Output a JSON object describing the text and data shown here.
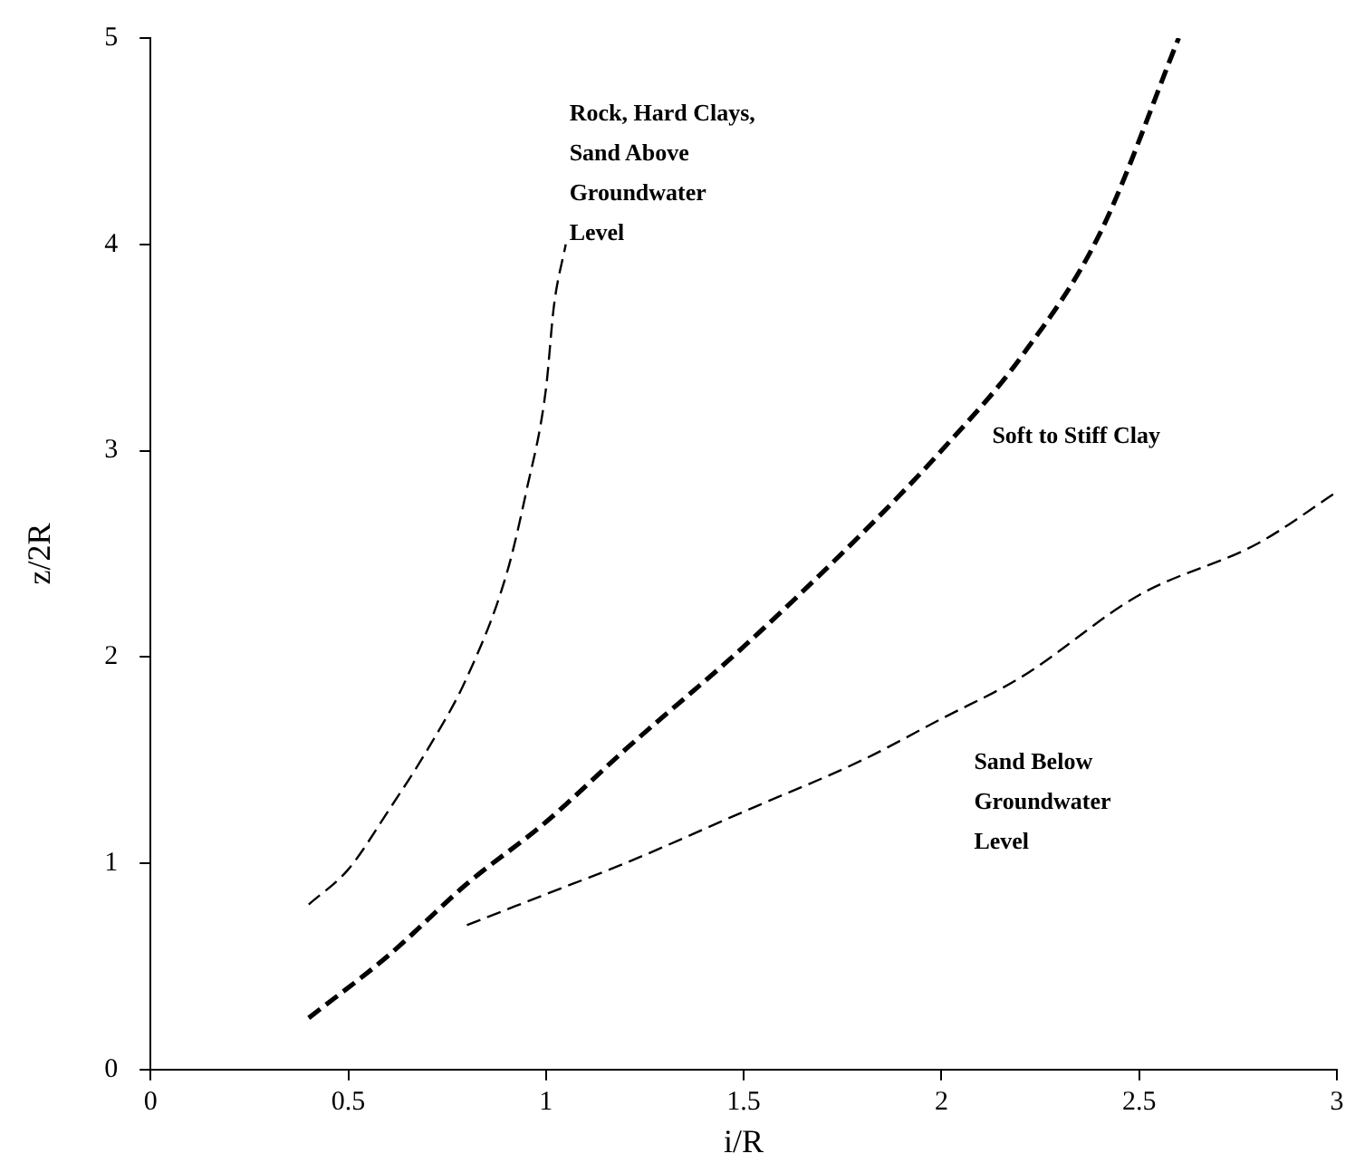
{
  "chart_data": {
    "type": "line",
    "xlabel": "i/R",
    "ylabel": "z/2R",
    "xlim": [
      0,
      3
    ],
    "ylim": [
      0,
      5
    ],
    "xticks": [
      0,
      0.5,
      1,
      1.5,
      2,
      2.5,
      3
    ],
    "yticks": [
      0,
      1,
      2,
      3,
      4,
      5
    ],
    "grid": false,
    "legend": false,
    "marker": "none",
    "series": [
      {
        "name": "Rock, Hard Clays, Sand Above Groundwater Level",
        "color": "#000000",
        "line_style": "dashed",
        "x": [
          0.4,
          0.5,
          0.6,
          0.7,
          0.8,
          0.9,
          0.95,
          1.0,
          1.02,
          1.05
        ],
        "values": [
          0.8,
          0.97,
          1.25,
          1.55,
          1.9,
          2.4,
          2.8,
          3.3,
          3.7,
          4.0
        ]
      },
      {
        "name": "Soft to Stiff Clay",
        "color": "#000000",
        "line_style": "dashed",
        "x": [
          0.4,
          0.6,
          0.8,
          1.0,
          1.2,
          1.5,
          1.8,
          2.0,
          2.2,
          2.4,
          2.6
        ],
        "values": [
          0.25,
          0.55,
          0.9,
          1.2,
          1.55,
          2.05,
          2.6,
          3.0,
          3.45,
          4.05,
          5.0
        ]
      },
      {
        "name": "Sand Below Groundwater Level",
        "color": "#000000",
        "line_style": "dashed",
        "x": [
          0.8,
          1.0,
          1.2,
          1.5,
          1.8,
          2.0,
          2.2,
          2.5,
          2.8,
          3.0
        ],
        "values": [
          0.7,
          0.85,
          1.0,
          1.25,
          1.5,
          1.7,
          1.9,
          2.3,
          2.55,
          2.8
        ]
      }
    ]
  }
}
